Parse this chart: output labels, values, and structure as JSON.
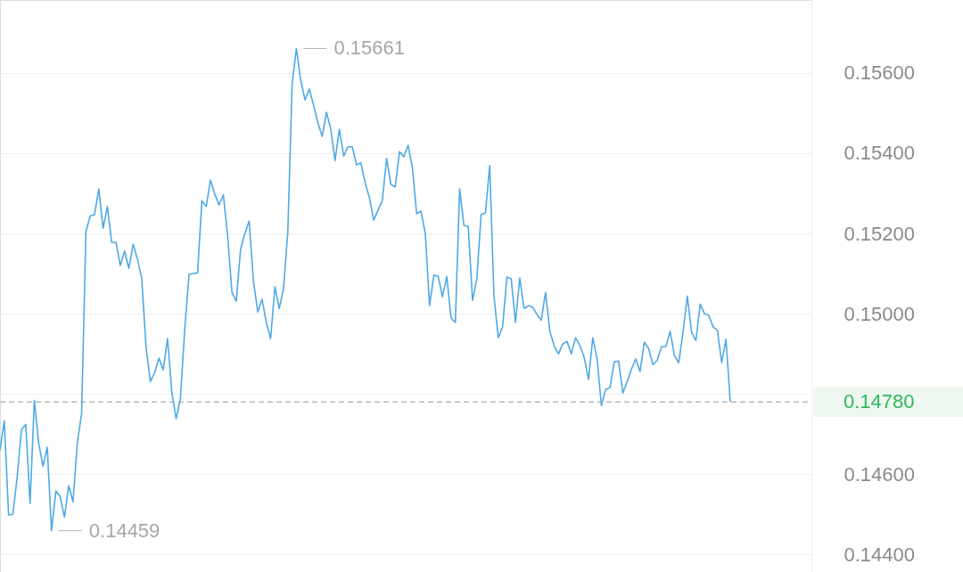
{
  "chart_data": {
    "type": "line",
    "categories": [
      null,
      null,
      null,
      null,
      null,
      null,
      null,
      null,
      null,
      null,
      null,
      null,
      null,
      null,
      null,
      null,
      null,
      null,
      null,
      null,
      null,
      null,
      null,
      null,
      null,
      null,
      null,
      null,
      null,
      null,
      null,
      null,
      null,
      null,
      null,
      null,
      null,
      null,
      null,
      null,
      null,
      null,
      null,
      null,
      null,
      null,
      null,
      null,
      null,
      null,
      null,
      null,
      null,
      null,
      null,
      null,
      null,
      null,
      null,
      null,
      null,
      null,
      null,
      null,
      null,
      null,
      null,
      null,
      null,
      null,
      null,
      null,
      null,
      null,
      null,
      null,
      null,
      null,
      null,
      null,
      null,
      null,
      null,
      null,
      null,
      null,
      null,
      null,
      null,
      null,
      null,
      null,
      null,
      null,
      null,
      null,
      null,
      null,
      null,
      null,
      null,
      null,
      null,
      null,
      null,
      null,
      null,
      null,
      null,
      null,
      null,
      null,
      null,
      null,
      null,
      null,
      null,
      null,
      null,
      null,
      null,
      null,
      null,
      null,
      null,
      null,
      null,
      null,
      null,
      null,
      null,
      null,
      null,
      null,
      null,
      null,
      null,
      null,
      null,
      null,
      null,
      null,
      null,
      null,
      null,
      null,
      null,
      null,
      null,
      null,
      null,
      null,
      null,
      null,
      null,
      null,
      null,
      null,
      null,
      null,
      null,
      null,
      null,
      null,
      null,
      null,
      null,
      null,
      null,
      null,
      null
    ],
    "series": [
      {
        "color": "#4fa9e6",
        "values": [
          0.1466,
          0.14733,
          0.14498,
          0.145,
          0.14593,
          0.14711,
          0.14724,
          0.14527,
          0.14784,
          0.14678,
          0.1462,
          0.14667,
          0.14459,
          0.14558,
          0.14544,
          0.14493,
          0.14571,
          0.14531,
          0.14678,
          0.14751,
          0.15204,
          0.15244,
          0.15247,
          0.15311,
          0.15213,
          0.15267,
          0.15178,
          0.15178,
          0.1512,
          0.15156,
          0.15113,
          0.15173,
          0.15136,
          0.15087,
          0.14916,
          0.14831,
          0.14853,
          0.14889,
          0.1486,
          0.14938,
          0.14804,
          0.14738,
          0.14789,
          0.1496,
          0.15098,
          0.151,
          0.15102,
          0.15282,
          0.15267,
          0.15333,
          0.15298,
          0.15271,
          0.15296,
          0.15193,
          0.15053,
          0.15031,
          0.1516,
          0.152,
          0.15231,
          0.15082,
          0.15004,
          0.15036,
          0.14978,
          0.14938,
          0.15067,
          0.15013,
          0.15062,
          0.15204,
          0.15571,
          0.15661,
          0.15582,
          0.15533,
          0.1556,
          0.1552,
          0.15476,
          0.15442,
          0.15502,
          0.1546,
          0.15382,
          0.1546,
          0.15393,
          0.15416,
          0.15416,
          0.15371,
          0.15376,
          0.15327,
          0.15289,
          0.15233,
          0.15258,
          0.15282,
          0.15387,
          0.15322,
          0.15316,
          0.15404,
          0.15391,
          0.1542,
          0.15364,
          0.15249,
          0.15256,
          0.152,
          0.1502,
          0.15096,
          0.15093,
          0.15042,
          0.15093,
          0.14989,
          0.14978,
          0.15311,
          0.1522,
          0.15218,
          0.15033,
          0.15087,
          0.15247,
          0.15251,
          0.15369,
          0.15042,
          0.1494,
          0.14967,
          0.15091,
          0.15087,
          0.14978,
          0.15089,
          0.15013,
          0.1502,
          0.15016,
          0.14998,
          0.14984,
          0.15053,
          0.14956,
          0.1492,
          0.149,
          0.14924,
          0.14931,
          0.149,
          0.1494,
          0.1492,
          0.14891,
          0.14836,
          0.1494,
          0.14887,
          0.14771,
          0.14811,
          0.14816,
          0.1488,
          0.14882,
          0.14802,
          0.14831,
          0.14862,
          0.14887,
          0.14856,
          0.14929,
          0.14913,
          0.14873,
          0.14884,
          0.14918,
          0.14918,
          0.14956,
          0.14896,
          0.14878,
          0.14953,
          0.15044,
          0.14953,
          0.14933,
          0.15024,
          0.15,
          0.14996,
          0.14967,
          0.14958,
          0.14878,
          0.14936,
          0.1478
        ]
      }
    ],
    "ylim": [
      0.14356,
      0.15782
    ],
    "yticks": [
      {
        "value": 0.144,
        "label": "0.14400"
      },
      {
        "value": 0.146,
        "label": "0.14600"
      },
      {
        "value": 0.148,
        "label": null
      },
      {
        "value": 0.15,
        "label": "0.15000"
      },
      {
        "value": 0.152,
        "label": "0.15200"
      },
      {
        "value": 0.154,
        "label": "0.15400"
      },
      {
        "value": 0.156,
        "label": "0.15600"
      }
    ],
    "grid": "y",
    "ref_lines": [
      {
        "axis": "y",
        "value": 0.1478,
        "label": "0.14780",
        "color": "#aaaaaa",
        "line_style": "dashed"
      }
    ],
    "annotations": [
      "0.15661",
      "0.14459"
    ],
    "tick_labels": "y"
  }
}
